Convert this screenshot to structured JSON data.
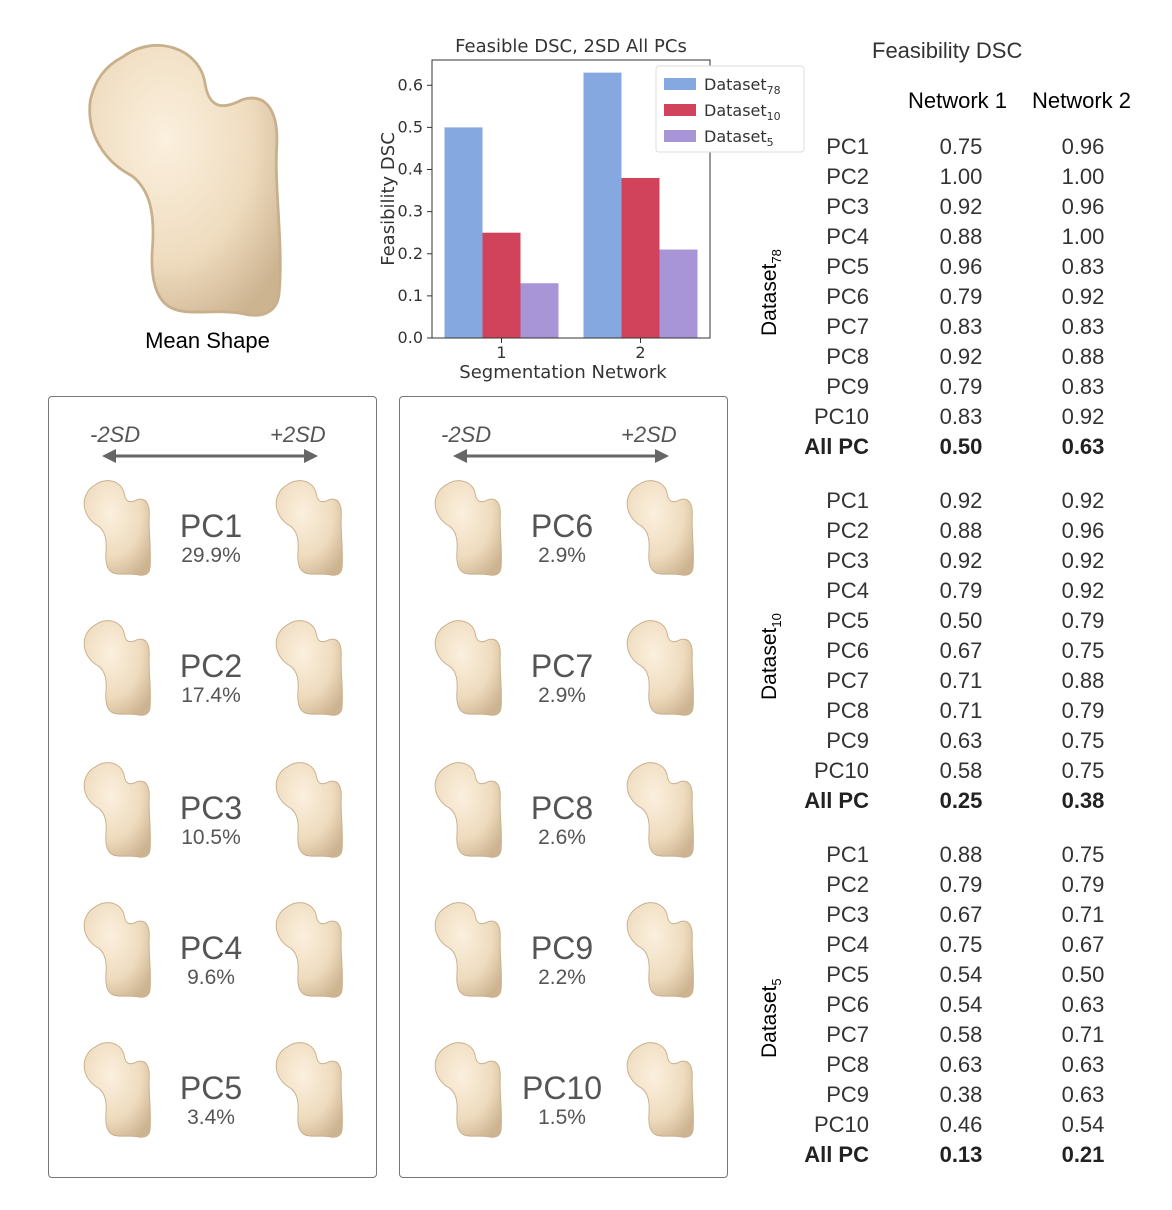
{
  "mean_shape_label": "Mean Shape",
  "chart_data": {
    "type": "bar",
    "title": "Feasible DSC, 2SD All PCs",
    "xlabel": "Segmentation Network",
    "ylabel": "Feasibility DSC",
    "categories": [
      "1",
      "2"
    ],
    "series": [
      {
        "name": "Dataset78",
        "base": "Dataset",
        "sub": "78",
        "values": [
          0.5,
          0.63
        ],
        "color": "#86a8e0"
      },
      {
        "name": "Dataset10",
        "base": "Dataset",
        "sub": "10",
        "values": [
          0.25,
          0.38
        ],
        "color": "#d1435b"
      },
      {
        "name": "Dataset5",
        "base": "Dataset",
        "sub": "5",
        "values": [
          0.13,
          0.21
        ],
        "color": "#a895d8"
      }
    ],
    "yticks": [
      "0.0",
      "0.1",
      "0.2",
      "0.3",
      "0.4",
      "0.5",
      "0.6"
    ],
    "ylim": [
      0,
      0.66
    ],
    "legend_position": "top-right"
  },
  "panels": {
    "minus_label": "-2SD",
    "plus_label": "+2SD",
    "left": [
      {
        "name": "PC1",
        "pct": "29.9%"
      },
      {
        "name": "PC2",
        "pct": "17.4%"
      },
      {
        "name": "PC3",
        "pct": "10.5%"
      },
      {
        "name": "PC4",
        "pct": "9.6%"
      },
      {
        "name": "PC5",
        "pct": "3.4%"
      }
    ],
    "right": [
      {
        "name": "PC6",
        "pct": "2.9%"
      },
      {
        "name": "PC7",
        "pct": "2.9%"
      },
      {
        "name": "PC8",
        "pct": "2.6%"
      },
      {
        "name": "PC9",
        "pct": "2.2%"
      },
      {
        "name": "PC10",
        "pct": "1.5%"
      }
    ]
  },
  "table": {
    "title": "Feasibility DSC",
    "col1": "Network 1",
    "col2": "Network 2",
    "groups": [
      {
        "base": "Dataset",
        "sub": "78",
        "rows": [
          [
            "PC1",
            "0.75",
            "0.96"
          ],
          [
            "PC2",
            "1.00",
            "1.00"
          ],
          [
            "PC3",
            "0.92",
            "0.96"
          ],
          [
            "PC4",
            "0.88",
            "1.00"
          ],
          [
            "PC5",
            "0.96",
            "0.83"
          ],
          [
            "PC6",
            "0.79",
            "0.92"
          ],
          [
            "PC7",
            "0.83",
            "0.83"
          ],
          [
            "PC8",
            "0.92",
            "0.88"
          ],
          [
            "PC9",
            "0.79",
            "0.83"
          ],
          [
            "PC10",
            "0.83",
            "0.92"
          ],
          [
            "All PC",
            "0.50",
            "0.63"
          ]
        ]
      },
      {
        "base": "Dataset",
        "sub": "10",
        "rows": [
          [
            "PC1",
            "0.92",
            "0.92"
          ],
          [
            "PC2",
            "0.88",
            "0.96"
          ],
          [
            "PC3",
            "0.92",
            "0.92"
          ],
          [
            "PC4",
            "0.79",
            "0.92"
          ],
          [
            "PC5",
            "0.50",
            "0.79"
          ],
          [
            "PC6",
            "0.67",
            "0.75"
          ],
          [
            "PC7",
            "0.71",
            "0.88"
          ],
          [
            "PC8",
            "0.71",
            "0.79"
          ],
          [
            "PC9",
            "0.63",
            "0.75"
          ],
          [
            "PC10",
            "0.58",
            "0.75"
          ],
          [
            "All PC",
            "0.25",
            "0.38"
          ]
        ]
      },
      {
        "base": "Dataset",
        "sub": "5",
        "rows": [
          [
            "PC1",
            "0.88",
            "0.75"
          ],
          [
            "PC2",
            "0.79",
            "0.79"
          ],
          [
            "PC3",
            "0.67",
            "0.71"
          ],
          [
            "PC4",
            "0.75",
            "0.67"
          ],
          [
            "PC5",
            "0.54",
            "0.50"
          ],
          [
            "PC6",
            "0.54",
            "0.63"
          ],
          [
            "PC7",
            "0.58",
            "0.71"
          ],
          [
            "PC8",
            "0.63",
            "0.63"
          ],
          [
            "PC9",
            "0.38",
            "0.63"
          ],
          [
            "PC10",
            "0.46",
            "0.54"
          ],
          [
            "All PC",
            "0.13",
            "0.21"
          ]
        ]
      }
    ]
  }
}
